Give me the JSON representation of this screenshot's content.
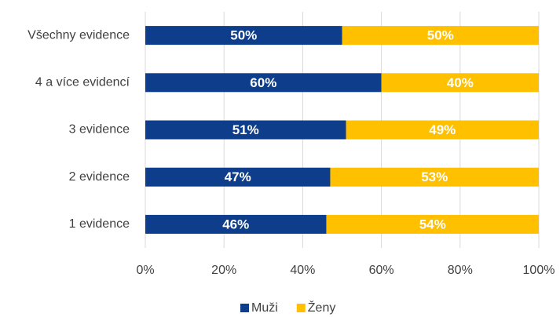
{
  "chart_data": {
    "type": "stacked-barh",
    "categories": [
      "Všechny evidence",
      "4 a více evidencí",
      "3 evidence",
      "2 evidence",
      "1 evidence"
    ],
    "series": [
      {
        "name": "Muži",
        "color": "#0e3d8b",
        "values": [
          50,
          60,
          51,
          47,
          46
        ],
        "value_labels": [
          "50%",
          "60%",
          "51%",
          "47%",
          "46%"
        ]
      },
      {
        "name": "Ženy",
        "color": "#ffc000",
        "values": [
          50,
          40,
          49,
          53,
          54
        ],
        "value_labels": [
          "50%",
          "40%",
          "49%",
          "53%",
          "54%"
        ]
      }
    ],
    "xlim": [
      0,
      100
    ],
    "xticks": [
      {
        "value": 0,
        "label": "0%"
      },
      {
        "value": 20,
        "label": "20%"
      },
      {
        "value": 40,
        "label": "40%"
      },
      {
        "value": 60,
        "label": "60%"
      },
      {
        "value": 80,
        "label": "80%"
      },
      {
        "value": 100,
        "label": "100%"
      }
    ],
    "grid": true,
    "legend": "bottom"
  }
}
